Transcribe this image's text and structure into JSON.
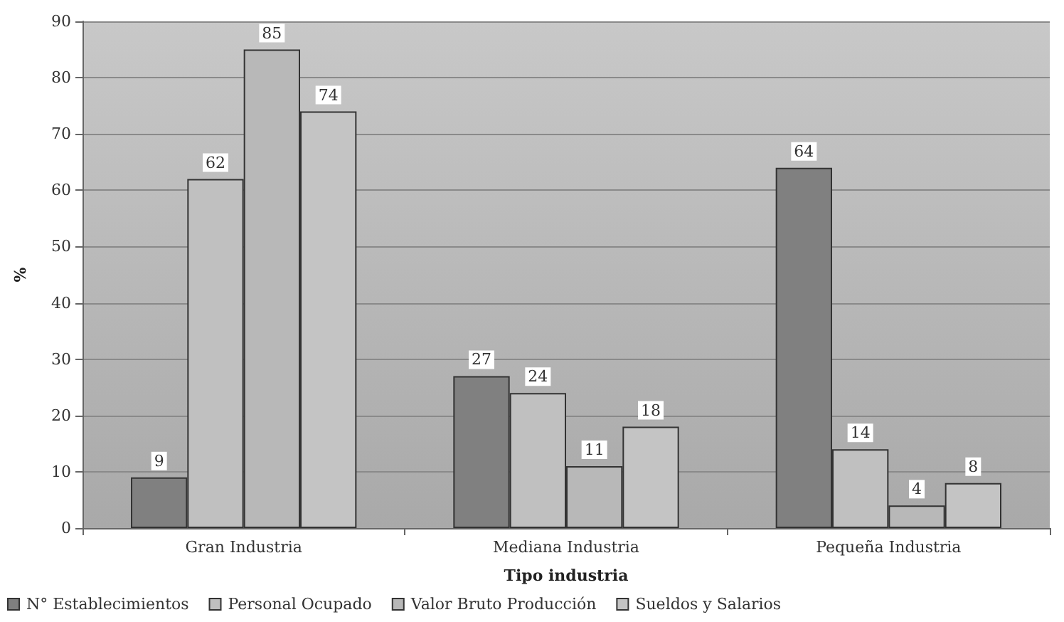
{
  "chart_data": {
    "type": "bar",
    "xlabel": "Tipo industria",
    "ylabel": "%",
    "categories": [
      "Gran Industria",
      "Mediana Industria",
      "Pequeña Industria"
    ],
    "series": [
      {
        "name": "N° Establecimientos",
        "color": "#808080",
        "values": [
          9,
          27,
          64
        ]
      },
      {
        "name": "Personal Ocupado",
        "color": "#c0c0c0",
        "values": [
          62,
          24,
          14
        ]
      },
      {
        "name": "Valor Bruto Producción",
        "color": "#b8b8b8",
        "values": [
          85,
          11,
          4
        ]
      },
      {
        "name": "Sueldos y Salarios",
        "color": "#c4c4c4",
        "values": [
          74,
          18,
          8
        ]
      }
    ],
    "ylim": [
      0,
      90
    ],
    "yticks": [
      0,
      10,
      20,
      30,
      40,
      50,
      60,
      70,
      80,
      90
    ],
    "grid": "y",
    "legend": "bottom",
    "data_labels": true
  }
}
